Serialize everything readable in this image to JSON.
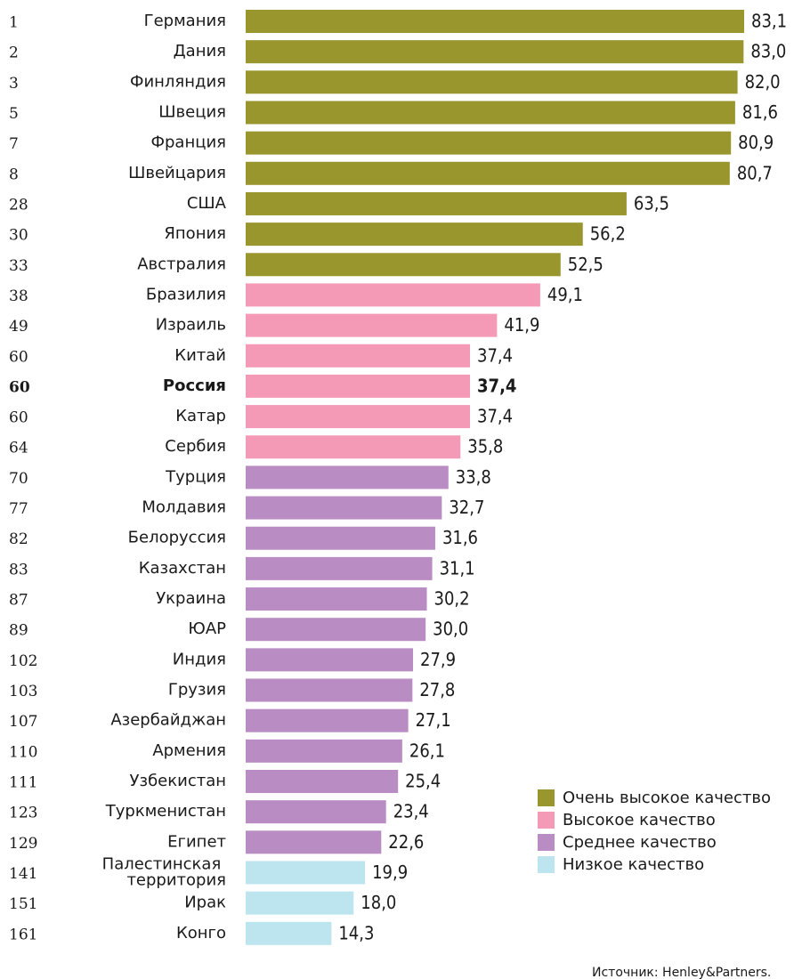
{
  "chart_data": {
    "type": "bar",
    "orientation": "horizontal",
    "ranks": [
      "1",
      "2",
      "3",
      "5",
      "7",
      "8",
      "28",
      "30",
      "33",
      "38",
      "49",
      "60",
      "60",
      "60",
      "64",
      "70",
      "77",
      "82",
      "83",
      "87",
      "89",
      "102",
      "103",
      "107",
      "110",
      "111",
      "123",
      "129",
      "141",
      "151",
      "161"
    ],
    "categories": [
      "Германия",
      "Дания",
      "Финляндия",
      "Швеция",
      "Франция",
      "Швейцария",
      "США",
      "Япония",
      "Австралия",
      "Бразилия",
      "Израиль",
      "Китай",
      "Россия",
      "Катар",
      "Сербия",
      "Турция",
      "Молдавия",
      "Белоруссия",
      "Казахстан",
      "Украина",
      "ЮАР",
      "Индия",
      "Грузия",
      "Азербайджан",
      "Армения",
      "Узбекистан",
      "Туркменистан",
      "Египет",
      "Палестинская территория",
      "Ирак",
      "Конго"
    ],
    "values": [
      83.1,
      83.0,
      82.0,
      81.6,
      80.9,
      80.7,
      63.5,
      56.2,
      52.5,
      49.1,
      41.9,
      37.4,
      37.4,
      37.4,
      35.8,
      33.8,
      32.7,
      31.6,
      31.1,
      30.2,
      30.0,
      27.9,
      27.8,
      27.1,
      26.1,
      25.4,
      23.4,
      22.6,
      19.9,
      18.0,
      14.3
    ],
    "value_labels": [
      "83,1",
      "83,0",
      "82,0",
      "81,6",
      "80,9",
      "80,7",
      "63,5",
      "56,2",
      "52,5",
      "49,1",
      "41,9",
      "37,4",
      "37,4",
      "37,4",
      "35,8",
      "33,8",
      "32,7",
      "31,6",
      "31,1",
      "30,2",
      "30,0",
      "27,9",
      "27,8",
      "27,1",
      "26,1",
      "25,4",
      "23,4",
      "22,6",
      "19,9",
      "18,0",
      "14,3"
    ],
    "colors": [
      "#9a962e",
      "#9a962e",
      "#9a962e",
      "#9a962e",
      "#9a962e",
      "#9a962e",
      "#9a962e",
      "#9a962e",
      "#9a962e",
      "#f59ab6",
      "#f59ab6",
      "#f59ab6",
      "#f59ab6",
      "#f59ab6",
      "#f59ab6",
      "#b98dc4",
      "#b98dc4",
      "#b98dc4",
      "#b98dc4",
      "#b98dc4",
      "#b98dc4",
      "#b98dc4",
      "#b98dc4",
      "#b98dc4",
      "#b98dc4",
      "#b98dc4",
      "#b98dc4",
      "#b98dc4",
      "#bde5ef",
      "#bde5ef",
      "#bde5ef"
    ],
    "highlight": 12,
    "xlim": [
      0,
      83.1
    ],
    "legend": [
      {
        "name": "Очень высокое качество",
        "color": "#9a962e"
      },
      {
        "name": "Высокое качество",
        "color": "#f59ab6"
      },
      {
        "name": "Среднее качество",
        "color": "#b98dc4"
      },
      {
        "name": "Низкое качество",
        "color": "#bde5ef"
      }
    ],
    "source": "Источник: Henley&Partners."
  }
}
